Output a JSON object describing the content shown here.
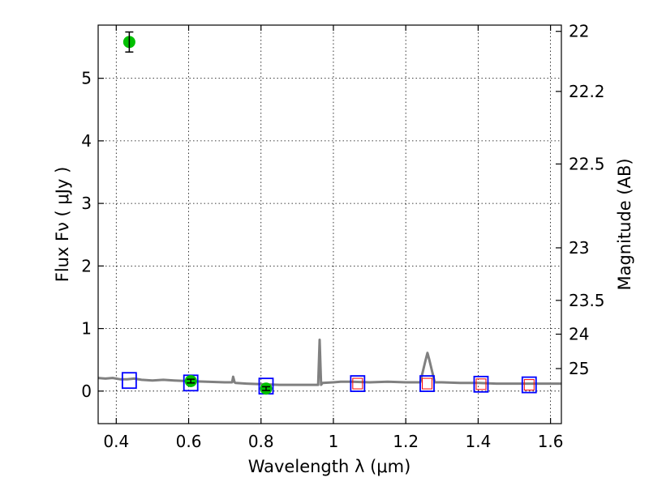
{
  "chart_data": {
    "type": "scatter",
    "xlabel": "Wavelength  λ (μm)",
    "ylabel": "Flux  Fν  ( μJy )",
    "y2label": "Magnitude (AB)",
    "xlim": [
      0.35,
      1.63
    ],
    "ylim": [
      -0.52,
      5.85
    ],
    "x_ticks": [
      0.4,
      0.6,
      0.8,
      1.0,
      1.2,
      1.4,
      1.6
    ],
    "x_tick_labels": [
      "0.4",
      "0.6",
      "0.8",
      "1",
      "1.2",
      "1.4",
      "1.6"
    ],
    "y_ticks": [
      0,
      1,
      2,
      3,
      4,
      5
    ],
    "y_tick_labels": [
      "0",
      "1",
      "2",
      "3",
      "4",
      "5"
    ],
    "y2_ticks": [
      {
        "label": "22",
        "flux": 5.75
      },
      {
        "label": "22.2",
        "flux": 4.79
      },
      {
        "label": "22.5",
        "flux": 3.63
      },
      {
        "label": "23",
        "flux": 2.29
      },
      {
        "label": "23.5",
        "flux": 1.45
      },
      {
        "label": "24",
        "flux": 0.91
      },
      {
        "label": "25",
        "flux": 0.36
      }
    ],
    "grid": true,
    "series": [
      {
        "kind": "line",
        "color": "#808080",
        "x": [
          0.35,
          0.37,
          0.39,
          0.41,
          0.43,
          0.45,
          0.47,
          0.5,
          0.53,
          0.56,
          0.6,
          0.65,
          0.7,
          0.72,
          0.723,
          0.727,
          0.73,
          0.76,
          0.8,
          0.85,
          0.9,
          0.95,
          0.958,
          0.962,
          0.966,
          0.97,
          1.0,
          1.02,
          1.05,
          1.1,
          1.15,
          1.2,
          1.24,
          1.255,
          1.26,
          1.265,
          1.28,
          1.3,
          1.35,
          1.4,
          1.45,
          1.5,
          1.55,
          1.6,
          1.63
        ],
        "y": [
          0.21,
          0.2,
          0.21,
          0.19,
          0.19,
          0.2,
          0.18,
          0.17,
          0.18,
          0.17,
          0.16,
          0.15,
          0.14,
          0.14,
          0.23,
          0.14,
          0.13,
          0.12,
          0.11,
          0.1,
          0.1,
          0.1,
          0.1,
          0.82,
          0.1,
          0.13,
          0.14,
          0.15,
          0.15,
          0.14,
          0.15,
          0.14,
          0.14,
          0.5,
          0.61,
          0.5,
          0.14,
          0.14,
          0.13,
          0.13,
          0.12,
          0.12,
          0.12,
          0.12,
          0.12
        ]
      },
      {
        "kind": "marker",
        "marker": "open-square",
        "color": "#0000ff",
        "x": [
          0.436,
          0.606,
          0.814,
          1.067,
          1.259,
          1.408,
          1.541
        ],
        "y": [
          0.17,
          0.13,
          0.08,
          0.12,
          0.12,
          0.11,
          0.1
        ]
      },
      {
        "kind": "marker",
        "marker": "open-square-small",
        "color": "#ff0000",
        "x": [
          1.067,
          1.259,
          1.408,
          1.541
        ],
        "y": [
          0.12,
          0.12,
          0.11,
          0.1
        ]
      },
      {
        "kind": "marker",
        "marker": "filled-circle",
        "color": "#00c000",
        "x": [
          0.436,
          0.606,
          0.814
        ],
        "y": [
          5.58,
          0.16,
          0.04
        ],
        "yerr": [
          0.16,
          0.03,
          0.03
        ]
      }
    ]
  }
}
